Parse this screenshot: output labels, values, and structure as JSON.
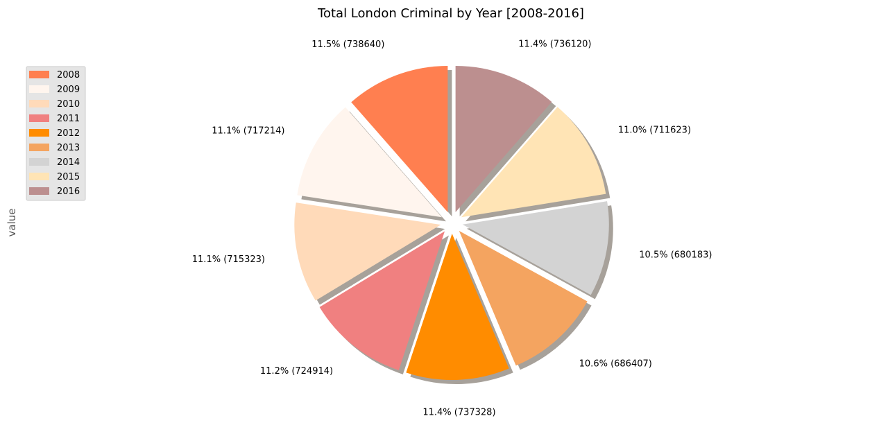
{
  "chart_data": {
    "type": "pie",
    "title": "Total London Criminal by Year [2008-2016]",
    "ylabel": "value",
    "legend_position": "top-left",
    "categories": [
      "2008",
      "2009",
      "2010",
      "2011",
      "2012",
      "2013",
      "2014",
      "2015",
      "2016"
    ],
    "values": [
      738640,
      717214,
      715323,
      724914,
      737328,
      686407,
      680183,
      711623,
      736120
    ],
    "percent_labels": [
      "11.5% (738640)",
      "11.1% (717214)",
      "11.1% (715323)",
      "11.2% (724914)",
      "11.4% (737328)",
      "10.6% (686407)",
      "10.5% (680183)",
      "11.0% (711623)",
      "11.4% (736120)"
    ],
    "colors": [
      "#ff7f50",
      "#fff5ee",
      "#ffdab9",
      "#f08080",
      "#ff8c00",
      "#f4a460",
      "#d3d3d3",
      "#ffe4b5",
      "#bc8f8f"
    ],
    "start_angle_deg": 90,
    "direction": "counterclockwise",
    "shadow": true
  }
}
